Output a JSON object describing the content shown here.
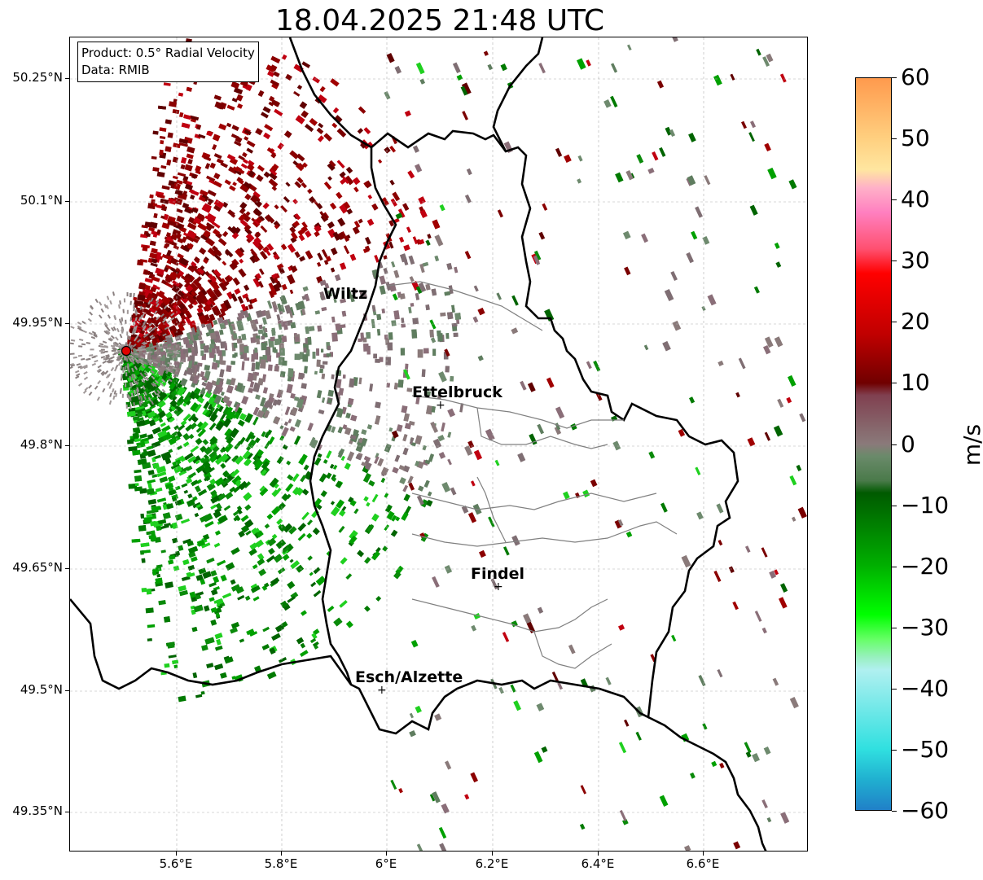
{
  "title": "18.04.2025 21:48 UTC",
  "info_box": {
    "product_line": "Product: 0.5° Radial Velocity",
    "data_line": "Data: RMIB"
  },
  "map": {
    "lat_ticks": [
      "50.25°N",
      "50.1°N",
      "49.95°N",
      "49.8°N",
      "49.65°N",
      "49.5°N",
      "49.35°N"
    ],
    "lon_ticks": [
      "5.6°E",
      "5.8°E",
      "6°E",
      "6.2°E",
      "6.4°E",
      "6.6°E"
    ],
    "cities": [
      {
        "name": "Wiltz"
      },
      {
        "name": "Ettelbruck"
      },
      {
        "name": "Findel"
      },
      {
        "name": "Esch/Alzette"
      }
    ],
    "radar_marker_color": "#e00000",
    "gridlines": true
  },
  "colorbar": {
    "label": "m/s",
    "ticks": [
      "60",
      "50",
      "40",
      "30",
      "20",
      "10",
      "0",
      "−10",
      "−20",
      "−30",
      "−40",
      "−50",
      "−60"
    ],
    "range": [
      -60,
      60
    ],
    "stops": [
      {
        "value": 60,
        "color": "#ff9a4d"
      },
      {
        "value": 50,
        "color": "#ffd080"
      },
      {
        "value": 45,
        "color": "#ffe6a0"
      },
      {
        "value": 42,
        "color": "#ffb0c8"
      },
      {
        "value": 38,
        "color": "#ff80c0"
      },
      {
        "value": 32,
        "color": "#ff5070"
      },
      {
        "value": 28,
        "color": "#ff0000"
      },
      {
        "value": 18,
        "color": "#c00000"
      },
      {
        "value": 10,
        "color": "#700000"
      },
      {
        "value": 8,
        "color": "#804050"
      },
      {
        "value": 0,
        "color": "#8a7a7a"
      },
      {
        "value": -2,
        "color": "#6a8a6a"
      },
      {
        "value": -6,
        "color": "#4a7a4a"
      },
      {
        "value": -8,
        "color": "#005a00"
      },
      {
        "value": -20,
        "color": "#00b000"
      },
      {
        "value": -28,
        "color": "#00ff00"
      },
      {
        "value": -32,
        "color": "#66ff66"
      },
      {
        "value": -35,
        "color": "#99f0c0"
      },
      {
        "value": -37,
        "color": "#b0f0f0"
      },
      {
        "value": -50,
        "color": "#30e0e0"
      },
      {
        "value": -55,
        "color": "#20b0d0"
      },
      {
        "value": -60,
        "color": "#2080c8"
      }
    ]
  }
}
